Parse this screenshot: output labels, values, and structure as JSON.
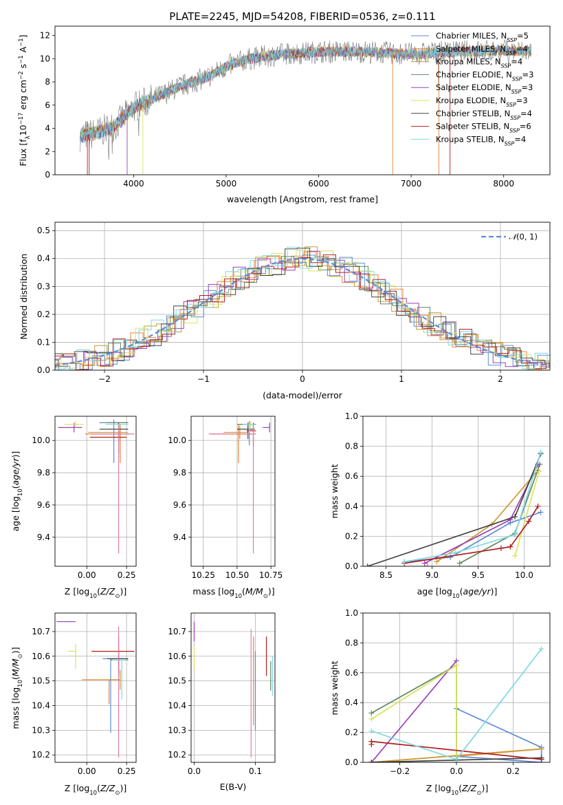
{
  "title": "PLATE=2245, MJD=54208, FIBERID=0536, z=0.111",
  "models": [
    {
      "label": "Chabrier MILES, N",
      "sub": "SSP",
      "rest": "=5",
      "color": "#5b8bd6"
    },
    {
      "label": "Salpeter MILES, N",
      "sub": "SSP",
      "rest": "=4",
      "color": "#e8823a"
    },
    {
      "label": "Kroupa MILES, N",
      "sub": "SSP",
      "rest": "=4",
      "color": "#c99a2e"
    },
    {
      "label": "Chabrier ELODIE, N",
      "sub": "SSP",
      "rest": "=3",
      "color": "#5f8a5f"
    },
    {
      "label": "Salpeter ELODIE, N",
      "sub": "SSP",
      "rest": "=3",
      "color": "#9b3fb5"
    },
    {
      "label": "Kroupa ELODIE, N",
      "sub": "SSP",
      "rest": "=3",
      "color": "#d9e35a"
    },
    {
      "label": "Chabrier STELIB, N",
      "sub": "SSP",
      "rest": "=4",
      "color": "#444444"
    },
    {
      "label": "Salpeter STELIB, N",
      "sub": "SSP",
      "rest": "=6",
      "color": "#b01c1c"
    },
    {
      "label": "Kroupa STELIB, N",
      "sub": "SSP",
      "rest": "=4",
      "color": "#80d8e0"
    }
  ],
  "chart_data": [
    {
      "id": "spectrum",
      "type": "line",
      "xlabel": "wavelength [Angstrom, rest frame]",
      "ylabel": "Flux [f_λ10^-17 erg cm^-2 s^-1 A^-1]",
      "xlim": [
        3150,
        8500
      ],
      "ylim": [
        0,
        12.8
      ],
      "xticks": [
        4000,
        5000,
        6000,
        7000,
        8000
      ],
      "yticks": [
        0,
        2,
        4,
        6,
        8,
        10,
        12
      ],
      "continuum_x": [
        3400,
        3600,
        3800,
        4000,
        4200,
        4500,
        4800,
        5000,
        5200,
        5500,
        6000,
        6500,
        7000,
        7500,
        8000,
        8300
      ],
      "continuum_y": [
        3.3,
        3.6,
        4.2,
        5.8,
        6.5,
        7.6,
        8.4,
        9.3,
        9.9,
        10.3,
        10.6,
        10.6,
        10.4,
        10.6,
        10.7,
        10.6
      ],
      "grid": false
    },
    {
      "id": "residuals",
      "type": "histogram",
      "xlabel": "(data-model)/error",
      "ylabel": "Normed distribution",
      "xlim": [
        -2.5,
        2.5
      ],
      "ylim": [
        0,
        0.53
      ],
      "xticks": [
        -2,
        -1,
        0,
        1,
        2
      ],
      "yticks": [
        0.0,
        0.1,
        0.2,
        0.3,
        0.4,
        0.5
      ],
      "reference_label": "N(0,1)",
      "reference_color": "#5b8bd6",
      "grid": true
    },
    {
      "id": "age_vs_Z",
      "type": "errorbar",
      "xlabel": "Z [log10(Z/Z_sun)]",
      "ylabel": "age [log10(age/yr)]",
      "xlim": [
        -0.2,
        0.31
      ],
      "ylim": [
        9.22,
        10.15
      ],
      "xticks": [
        0.0,
        0.25
      ],
      "yticks": [
        9.4,
        9.6,
        9.8,
        10.0
      ],
      "points": [
        {
          "m": 0,
          "x": 0.17,
          "y": 10.11,
          "xerr": [
            0.09,
            0.09
          ],
          "yerr": [
            0.25,
            0.02
          ]
        },
        {
          "m": 1,
          "x": 0.21,
          "y": 10.04,
          "xerr": [
            0.22,
            0.06
          ],
          "yerr": [
            0.18,
            0.06
          ]
        },
        {
          "m": 2,
          "x": 0.21,
          "y": 10.05,
          "xerr": [
            0.2,
            0.05
          ],
          "yerr": [
            0.04,
            0.04
          ]
        },
        {
          "m": 3,
          "x": 0.2,
          "y": 10.11,
          "xerr": [
            0.08,
            0.06
          ],
          "yerr": [
            0.05,
            0.0
          ]
        },
        {
          "m": 4,
          "x": -0.08,
          "y": 10.08,
          "xerr": [
            0.1,
            0.05
          ],
          "yerr": [
            0.03,
            0.03
          ]
        },
        {
          "m": 5,
          "x": -0.07,
          "y": 10.1,
          "xerr": [
            0.07,
            0.05
          ],
          "yerr": [
            0.02,
            0.02
          ]
        },
        {
          "m": 6,
          "x": 0.2,
          "y": 10.07,
          "xerr": [
            0.12,
            0.06
          ],
          "yerr": [
            0.06,
            0.04
          ]
        },
        {
          "m": 7,
          "x": 0.2,
          "y": 10.02,
          "xerr": [
            0.18,
            0.05
          ],
          "yerr": [
            0.1,
            0.08
          ]
        },
        {
          "m": 8,
          "x": 0.2,
          "y": 10.1,
          "xerr": [
            0.08,
            0.06
          ],
          "yerr": [
            0.05,
            0.0
          ]
        },
        {
          "m": 9,
          "x": 0.2,
          "y": 10.04,
          "xerr": [
            0.17,
            0.1
          ],
          "yerr": [
            0.74,
            0.06
          ]
        }
      ],
      "grid": true
    },
    {
      "id": "age_vs_mass",
      "type": "errorbar",
      "xlabel": "mass [log10(M/M_sun)]",
      "ylabel": "",
      "xlim": [
        10.16,
        10.78
      ],
      "ylim": [
        9.22,
        10.15
      ],
      "xticks": [
        10.25,
        10.5,
        10.75
      ],
      "yticks": [
        9.4,
        9.6,
        9.8,
        10.0
      ],
      "points": [
        {
          "m": 0,
          "x": 10.59,
          "y": 10.1,
          "xerr": [
            0.08,
            0.05
          ],
          "yerr": [
            0.13,
            0.02
          ]
        },
        {
          "m": 1,
          "x": 10.51,
          "y": 10.04,
          "xerr": [
            0.2,
            0.1
          ],
          "yerr": [
            0.18,
            0.06
          ]
        },
        {
          "m": 2,
          "x": 10.52,
          "y": 10.05,
          "xerr": [
            0.12,
            0.06
          ],
          "yerr": [
            0.04,
            0.04
          ]
        },
        {
          "m": 3,
          "x": 10.58,
          "y": 10.1,
          "xerr": [
            0.08,
            0.02
          ],
          "yerr": [
            0.05,
            0.01
          ]
        },
        {
          "m": 4,
          "x": 10.74,
          "y": 10.08,
          "xerr": [
            0.05,
            0.0
          ],
          "yerr": [
            0.03,
            0.03
          ]
        },
        {
          "m": 5,
          "x": 10.6,
          "y": 10.1,
          "xerr": [
            0.03,
            0.02
          ],
          "yerr": [
            0.02,
            0.02
          ]
        },
        {
          "m": 6,
          "x": 10.58,
          "y": 10.07,
          "xerr": [
            0.08,
            0.05
          ],
          "yerr": [
            0.06,
            0.04
          ]
        },
        {
          "m": 7,
          "x": 10.62,
          "y": 10.06,
          "xerr": [
            0.05,
            0.02
          ],
          "yerr": [
            0.1,
            0.05
          ]
        },
        {
          "m": 8,
          "x": 10.59,
          "y": 10.1,
          "xerr": [
            0.05,
            0.04
          ],
          "yerr": [
            0.05,
            0.0
          ]
        },
        {
          "m": 9,
          "x": 10.62,
          "y": 10.04,
          "xerr": [
            0.33,
            0.02
          ],
          "yerr": [
            0.74,
            0.06
          ]
        }
      ],
      "grid": true
    },
    {
      "id": "weight_vs_age",
      "type": "line",
      "xlabel": "age [log10(age/yr)]",
      "ylabel": "mass weight",
      "xlim": [
        8.25,
        10.28
      ],
      "ylim": [
        0,
        1.0
      ],
      "xticks": [
        8.5,
        9.0,
        9.5,
        10.0
      ],
      "yticks": [
        0.0,
        0.2,
        0.4,
        0.6,
        0.8,
        1.0
      ],
      "series": [
        {
          "m": 0,
          "x": [
            8.7,
            9.2,
            9.85,
            10.18
          ],
          "y": [
            0.03,
            0.06,
            0.29,
            0.36
          ]
        },
        {
          "m": 1,
          "x": 8.95,
          "y": 0
        },
        {
          "m": 2,
          "x": [
            9.05,
            9.65,
            10.15
          ],
          "y": [
            0.03,
            0.28,
            0.64
          ]
        },
        {
          "m": 3,
          "x": [
            9.3,
            9.9,
            10.17
          ],
          "y": [
            0.02,
            0.22,
            0.68
          ]
        },
        {
          "m": 4,
          "x": [
            8.92,
            9.85,
            10.15
          ],
          "y": [
            0.02,
            0.31,
            0.68
          ]
        },
        {
          "m": 5,
          "x": [
            9.9,
            10.16
          ],
          "y": [
            0.07,
            0.63
          ]
        },
        {
          "m": 6,
          "x": [
            8.3,
            9.9,
            10.18
          ],
          "y": [
            0.0,
            0.33,
            0.75
          ]
        },
        {
          "m": 7,
          "x": [
            8.7,
            9.75,
            9.85,
            10.05,
            10.15
          ],
          "y": [
            0.02,
            0.12,
            0.13,
            0.3,
            0.4
          ]
        },
        {
          "m": 8,
          "x": [
            8.7,
            9.25,
            9.9,
            10.18
          ],
          "y": [
            0.03,
            0.09,
            0.21,
            0.76
          ]
        }
      ],
      "grid": true
    },
    {
      "id": "mass_vs_Z",
      "type": "errorbar",
      "xlabel": "Z [log10(Z/Z_sun)]",
      "ylabel": "mass [log10(M/M_sun)]",
      "xlim": [
        -0.2,
        0.31
      ],
      "ylim": [
        10.17,
        10.775
      ],
      "xticks": [
        0.0,
        0.25
      ],
      "yticks": [
        10.2,
        10.3,
        10.4,
        10.5,
        10.6,
        10.7
      ],
      "points": [
        {
          "m": 0,
          "x": 0.15,
          "y": 10.59,
          "xerr": [
            0.05,
            0.09
          ],
          "yerr": [
            0.3,
            0.0
          ]
        },
        {
          "m": 1,
          "x": 0.14,
          "y": 10.505,
          "xerr": [
            0.17,
            0.06
          ],
          "yerr": [
            0.1,
            0.0
          ]
        },
        {
          "m": 2,
          "x": 0.21,
          "y": 10.505,
          "xerr": [
            0.12,
            0.0
          ],
          "yerr": [
            0.04,
            0.04
          ]
        },
        {
          "m": 3,
          "x": 0.2,
          "y": 10.585,
          "xerr": [
            0.05,
            0.06
          ],
          "yerr": [
            0.03,
            0.01
          ]
        },
        {
          "m": 4,
          "x": -0.07,
          "y": 10.74,
          "xerr": [
            0.12,
            0.0
          ],
          "yerr": [
            0.0,
            0.0
          ]
        },
        {
          "m": 5,
          "x": -0.07,
          "y": 10.62,
          "xerr": [
            0.05,
            0.0
          ],
          "yerr": [
            0.07,
            0.03
          ]
        },
        {
          "m": 6,
          "x": 0.2,
          "y": 10.59,
          "xerr": [
            0.07,
            0.06
          ],
          "yerr": [
            0.06,
            0.04
          ]
        },
        {
          "m": 7,
          "x": 0.2,
          "y": 10.62,
          "xerr": [
            0.17,
            0.1
          ],
          "yerr": [
            0.1,
            0.06
          ]
        },
        {
          "m": 8,
          "x": 0.22,
          "y": 10.585,
          "xerr": [
            0.06,
            0.03
          ],
          "yerr": [
            0.16,
            0.0
          ]
        },
        {
          "m": 9,
          "x": 0.2,
          "y": 10.62,
          "xerr": [
            0.0,
            0.0
          ],
          "yerr": [
            0.43,
            0.1
          ]
        }
      ],
      "grid": true
    },
    {
      "id": "mass_vs_ebv",
      "type": "errorbar",
      "xlabel": "E(B-V)",
      "ylabel": "",
      "xlim": [
        -0.005,
        0.132
      ],
      "ylim": [
        10.17,
        10.775
      ],
      "xticks": [
        0.0,
        0.1
      ],
      "yticks": [
        10.2,
        10.3,
        10.4,
        10.5,
        10.6,
        10.7
      ],
      "points": [
        {
          "m": 0,
          "x": 0.1,
          "y": 10.5,
          "xerr": [
            0,
            0
          ],
          "yerr": [
            0.2,
            0.12
          ]
        },
        {
          "m": 4,
          "x": 0.0,
          "y": 10.7,
          "xerr": [
            0,
            0
          ],
          "yerr": [
            0.04,
            0.04
          ]
        },
        {
          "m": 5,
          "x": 0.0,
          "y": 10.6,
          "xerr": [
            0,
            0
          ],
          "yerr": [
            0.05,
            0.04
          ]
        },
        {
          "m": 7,
          "x": 0.118,
          "y": 10.6,
          "xerr": [
            0,
            0
          ],
          "yerr": [
            0.08,
            0.08
          ]
        },
        {
          "m": 8,
          "x": 0.128,
          "y": 10.52,
          "xerr": [
            0,
            0
          ],
          "yerr": [
            0.08,
            0.08
          ]
        },
        {
          "m": 3,
          "x": 0.125,
          "y": 10.52,
          "xerr": [
            0,
            0
          ],
          "yerr": [
            0.06,
            0.06
          ]
        },
        {
          "m": 9,
          "x": 0.093,
          "y": 10.45,
          "xerr": [
            0,
            0
          ],
          "yerr": [
            0.26,
            0.26
          ]
        },
        {
          "m": 1,
          "x": 0.097,
          "y": 10.5,
          "xerr": [
            0,
            0
          ],
          "yerr": [
            0.18,
            0.18
          ]
        }
      ],
      "grid": true
    },
    {
      "id": "weight_vs_Z",
      "type": "line",
      "xlabel": "Z [log10(Z/Z_sun)]",
      "ylabel": "mass weight",
      "xlim": [
        -0.33,
        0.33
      ],
      "ylim": [
        0,
        1.0
      ],
      "xticks": [
        -0.2,
        0.0,
        0.2
      ],
      "yticks": [
        0.0,
        0.2,
        0.4,
        0.6,
        0.8,
        1.0
      ],
      "series": [
        {
          "m": 0,
          "x": [
            0.0,
            0.3,
            0.3,
            0.0
          ],
          "y": [
            0.36,
            0.1,
            0.0,
            0.04
          ]
        },
        {
          "m": 1,
          "x": [
            -0.3,
            0.3,
            0.0
          ],
          "y": [
            0.0,
            0.09,
            0.04
          ]
        },
        {
          "m": 2,
          "x": [
            -0.3,
            0.3
          ],
          "y": [
            0.0,
            0.09
          ]
        },
        {
          "m": 3,
          "x": [
            -0.3,
            0.0,
            0.0
          ],
          "y": [
            0.33,
            0.65,
            0.0
          ]
        },
        {
          "m": 4,
          "x": [
            -0.3,
            0.0
          ],
          "y": [
            0.0,
            0.68
          ]
        },
        {
          "m": 5,
          "x": [
            -0.3,
            0.0,
            0.0
          ],
          "y": [
            0.29,
            0.65,
            0.0
          ]
        },
        {
          "m": 6,
          "x": [
            -0.3,
            0.3
          ],
          "y": [
            0.0,
            0.03
          ]
        },
        {
          "m": 7,
          "x": [
            -0.3,
            -0.3,
            0.3
          ],
          "y": [
            0.12,
            0.14,
            0.02
          ]
        },
        {
          "m": 8,
          "x": [
            -0.3,
            0.0,
            0.3
          ],
          "y": [
            0.21,
            0.02,
            0.76
          ]
        }
      ],
      "grid": true
    }
  ]
}
